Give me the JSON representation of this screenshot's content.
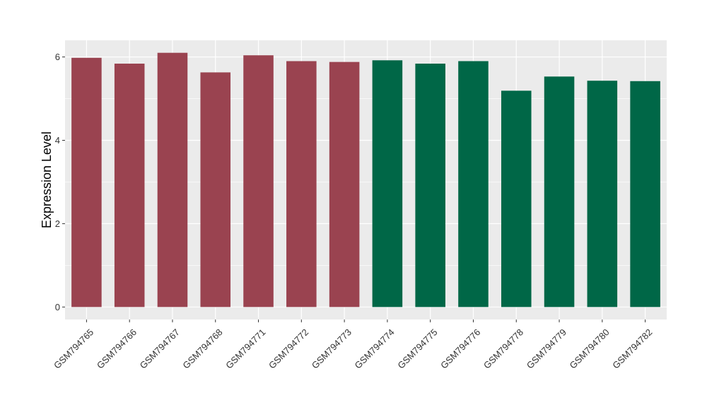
{
  "chart_data": {
    "type": "bar",
    "title": "",
    "xlabel": "",
    "ylabel": "Expression Level",
    "ylim": [
      -0.3,
      6.4
    ],
    "yticks": [
      0,
      2,
      4,
      6
    ],
    "grid": true,
    "legend": "none",
    "panel_background": "#EBEBEB",
    "grid_color": "#FFFFFF",
    "categories": [
      "GSM794765",
      "GSM794766",
      "GSM794767",
      "GSM794768",
      "GSM794771",
      "GSM794772",
      "GSM794773",
      "GSM794774",
      "GSM794775",
      "GSM794776",
      "GSM794778",
      "GSM794779",
      "GSM794780",
      "GSM794782"
    ],
    "values": [
      5.98,
      5.84,
      6.1,
      5.63,
      6.04,
      5.9,
      5.88,
      5.92,
      5.84,
      5.9,
      5.19,
      5.53,
      5.43,
      5.42
    ],
    "colors": [
      "#9A4350",
      "#9A4350",
      "#9A4350",
      "#9A4350",
      "#9A4350",
      "#9A4350",
      "#9A4350",
      "#006747",
      "#006747",
      "#006747",
      "#006747",
      "#006747",
      "#006747",
      "#006747"
    ]
  }
}
